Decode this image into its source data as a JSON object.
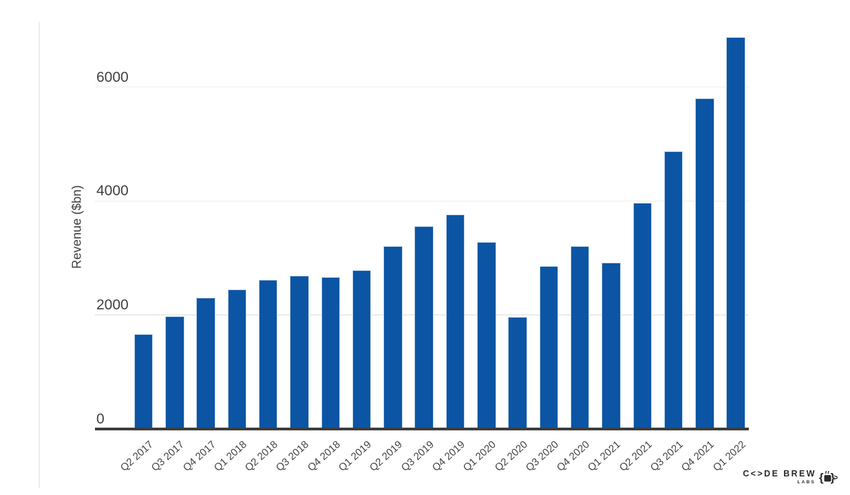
{
  "chart_data": {
    "type": "bar",
    "title": "",
    "ylabel": "Revenue ($bn)",
    "xlabel": "",
    "categories": [
      "Q2 2017",
      "Q3 2017",
      "Q4 2017",
      "Q1 2018",
      "Q2 2018",
      "Q3 2018",
      "Q4 2018",
      "Q1 2019",
      "Q2 2019",
      "Q3 2019",
      "Q4 2019",
      "Q1 2020",
      "Q2 2020",
      "Q3 2020",
      "Q4 2020",
      "Q1 2021",
      "Q2 2021",
      "Q3 2021",
      "Q4 2021",
      "Q1 2022"
    ],
    "values": [
      1640,
      1960,
      2280,
      2420,
      2590,
      2670,
      2640,
      2760,
      3180,
      3540,
      3740,
      3260,
      1940,
      2830,
      3180,
      2890,
      3950,
      4850,
      5780,
      6850
    ],
    "yticks": [
      0,
      2000,
      4000,
      6000
    ],
    "ylim": [
      0,
      7000
    ],
    "grid": "horizontal",
    "legend": "none",
    "bar_color": "#0b55a4",
    "axis_color": "#3d3d3d",
    "gridline_color": "#ececec"
  },
  "watermark": {
    "brand": "C<>DE BREW",
    "sub": "LABS"
  }
}
